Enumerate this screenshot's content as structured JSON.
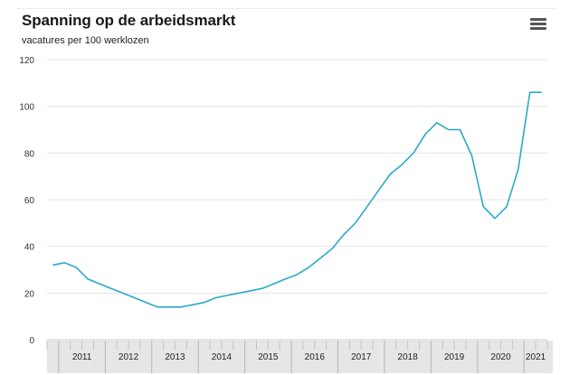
{
  "chart_data": {
    "type": "line",
    "title": "Spanning op de arbeidsmarkt",
    "subtitle": "vacatures per 100 werklozen",
    "xlabel": "",
    "ylabel": "",
    "ylim": [
      0,
      120
    ],
    "yticks": [
      "0",
      "20",
      "40",
      "60",
      "80",
      "100",
      "120"
    ],
    "xlim": [
      2010.75,
      2021.5
    ],
    "year_labels": [
      "2011",
      "2012",
      "2013",
      "2014",
      "2015",
      "2016",
      "2017",
      "2018",
      "2019",
      "2020",
      "2021"
    ],
    "grid": "horizontal",
    "legend": "none",
    "series": [
      {
        "color": "#2ba9c9",
        "x": [
          2010.875,
          2011.125,
          2011.375,
          2011.625,
          2011.875,
          2012.125,
          2012.375,
          2012.625,
          2012.875,
          2013.125,
          2013.375,
          2013.625,
          2013.875,
          2014.125,
          2014.375,
          2014.625,
          2014.875,
          2015.125,
          2015.375,
          2015.625,
          2015.875,
          2016.125,
          2016.375,
          2016.625,
          2016.875,
          2017.125,
          2017.375,
          2017.625,
          2017.875,
          2018.125,
          2018.375,
          2018.625,
          2018.875,
          2019.125,
          2019.375,
          2019.625,
          2019.875,
          2020.125,
          2020.375,
          2020.625,
          2020.875,
          2021.125,
          2021.375
        ],
        "values": [
          32,
          33,
          31,
          26,
          24,
          22,
          20,
          18,
          16,
          14,
          14,
          14,
          15,
          16,
          18,
          19,
          20,
          21,
          22,
          24,
          26,
          28,
          31,
          35,
          39,
          45,
          50,
          57,
          64,
          71,
          75,
          80,
          88,
          93,
          90,
          90,
          79,
          57,
          52,
          57,
          73,
          106,
          106
        ]
      }
    ]
  }
}
